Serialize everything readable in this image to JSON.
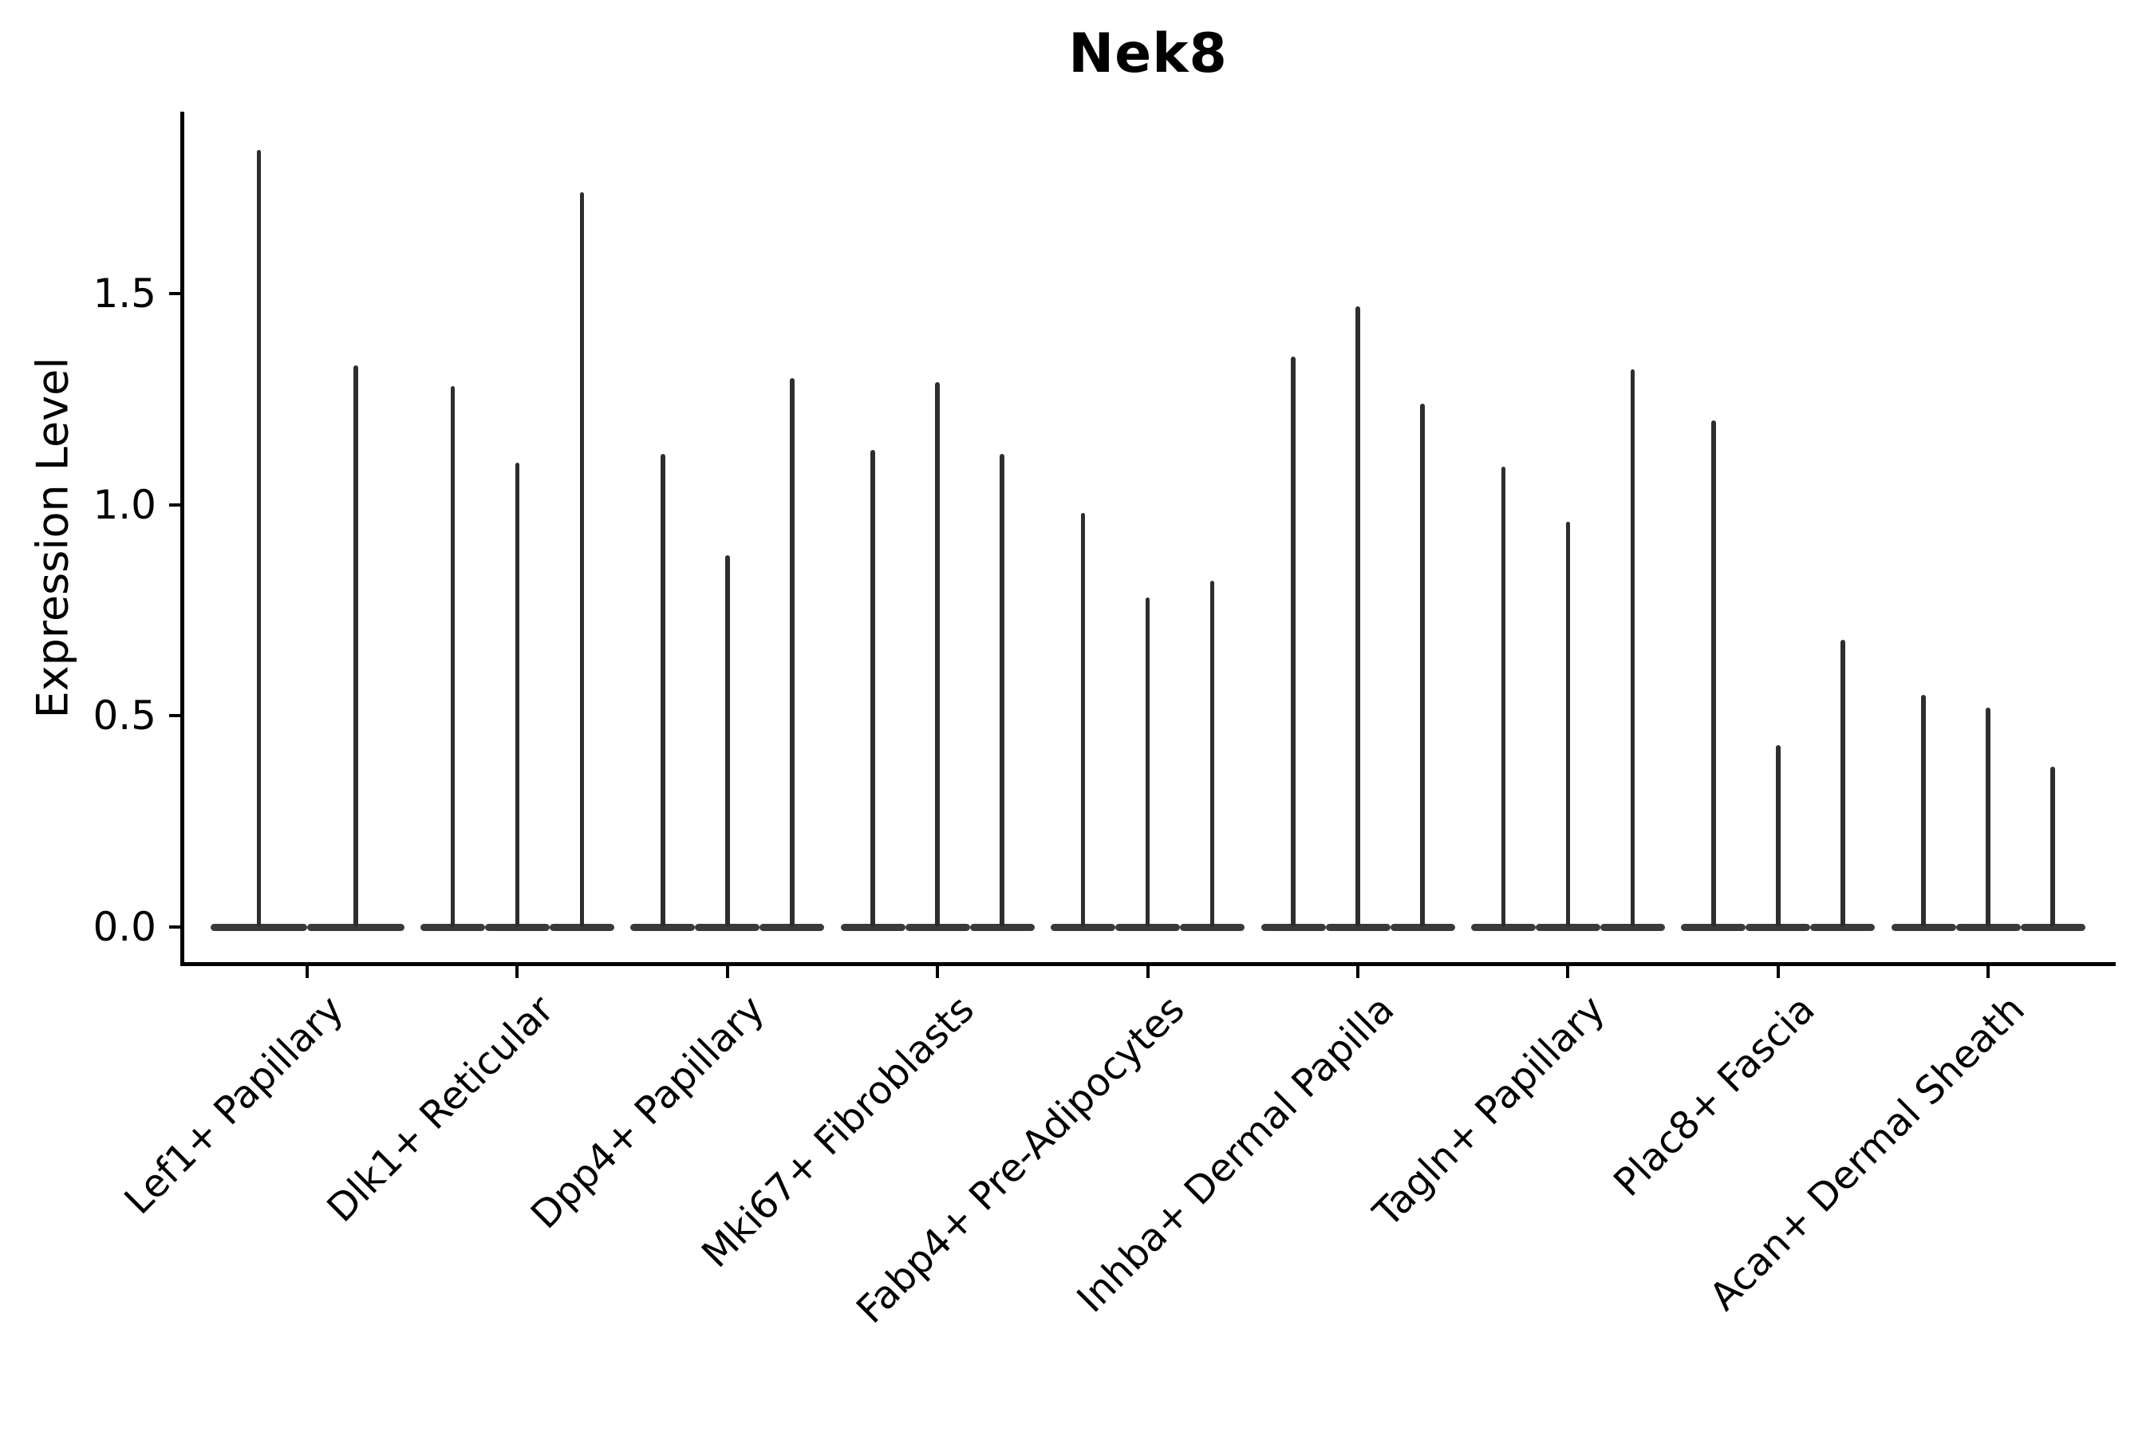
{
  "figure": {
    "title": "Nek8",
    "ylabel": "Expression Level"
  },
  "chart_data": {
    "type": "violin",
    "title": "Nek8",
    "xlabel": "",
    "ylabel": "Expression Level",
    "ylim": [
      0,
      1.93
    ],
    "yticks": [
      0,
      0.5,
      1.0,
      1.5
    ],
    "ytick_labels": [
      "0.0",
      "0.5",
      "1.0",
      "1.5"
    ],
    "grid": false,
    "legend_position": "none",
    "note": "Needle-thin violin plot; nearly all density sits at expression 0 (flat base blob) and violin_peaks lists the top of each thin spike, left to right within each category.",
    "categories": [
      "Lef1+ Papillary",
      "Dlk1+ Reticular",
      "Dpp4+ Papillary",
      "Mki67+ Fibroblasts",
      "Fabp4+ Pre-Adipocytes",
      "Inhba+ Dermal Papilla",
      "Tagln+ Papillary",
      "Plac8+ Fascia",
      "Acan+ Dermal Sheath"
    ],
    "series": [
      {
        "category": "Lef1+ Papillary",
        "violin_peaks": [
          1.84,
          1.33
        ]
      },
      {
        "category": "Dlk1+ Reticular",
        "violin_peaks": [
          1.28,
          1.1,
          1.74
        ]
      },
      {
        "category": "Dpp4+ Papillary",
        "violin_peaks": [
          1.12,
          0.88,
          1.3
        ]
      },
      {
        "category": "Mki67+ Fibroblasts",
        "violin_peaks": [
          1.13,
          1.29,
          1.12
        ]
      },
      {
        "category": "Fabp4+ Pre-Adipocytes",
        "violin_peaks": [
          0.98,
          0.78,
          0.82
        ]
      },
      {
        "category": "Inhba+ Dermal Papilla",
        "violin_peaks": [
          1.35,
          1.47,
          1.24
        ]
      },
      {
        "category": "Tagln+ Papillary",
        "violin_peaks": [
          1.09,
          0.96,
          1.32
        ]
      },
      {
        "category": "Plac8+ Fascia",
        "violin_peaks": [
          1.2,
          0.43,
          0.68
        ]
      },
      {
        "category": "Acan+ Dermal Sheath",
        "violin_peaks": [
          0.55,
          0.52,
          0.38
        ]
      }
    ]
  }
}
